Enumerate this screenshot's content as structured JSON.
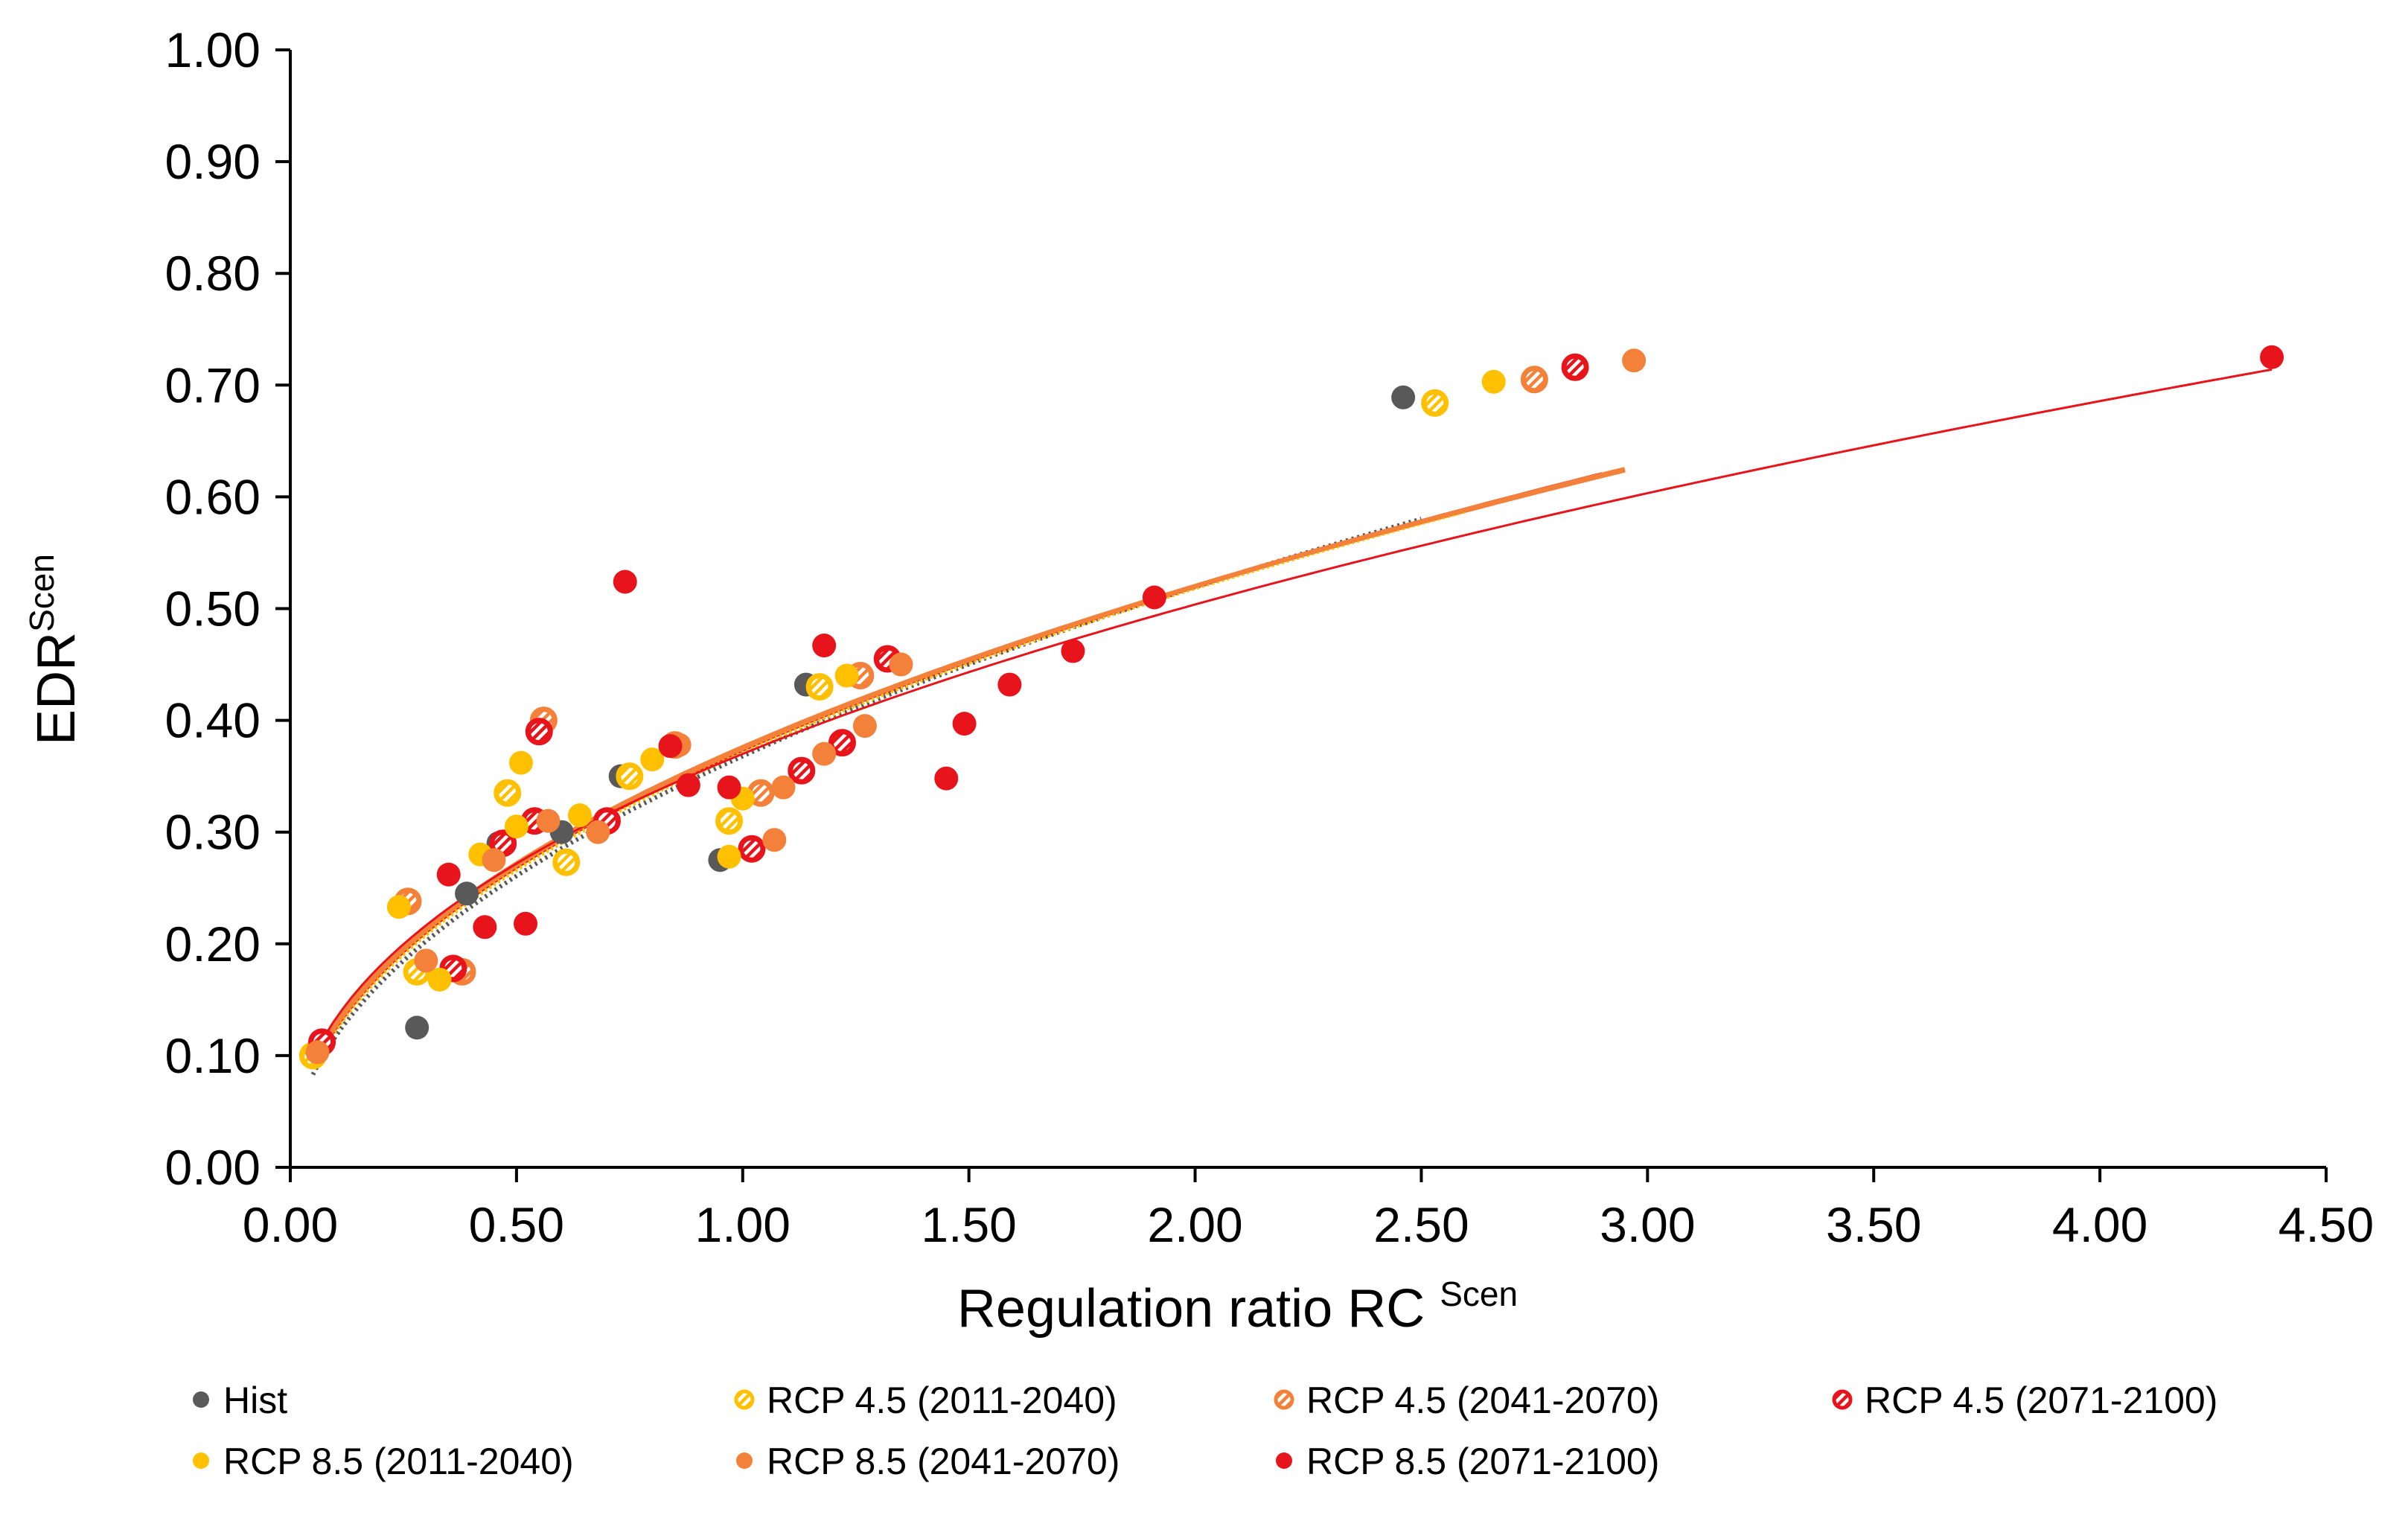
{
  "chart_data": {
    "type": "scatter",
    "title": "",
    "xlabel": "Regulation ratio RC",
    "xlabel_superscript": "Scen",
    "ylabel": "EDR",
    "ylabel_superscript": "Scen",
    "xlim": [
      0,
      4.5
    ],
    "ylim": [
      0,
      1.0
    ],
    "x_ticks": [
      "0.00",
      "0.50",
      "1.00",
      "1.50",
      "2.00",
      "2.50",
      "3.00",
      "3.50",
      "4.00",
      "4.50"
    ],
    "y_ticks": [
      "0.00",
      "0.10",
      "0.20",
      "0.30",
      "0.40",
      "0.50",
      "0.60",
      "0.70",
      "0.80",
      "0.90",
      "1.00"
    ],
    "grid": false,
    "legend_position": "bottom",
    "series": [
      {
        "name": "Hist",
        "color": "#595959",
        "marker": "solid",
        "trend": {
          "a": 0.368,
          "b": 0.497,
          "xmax": 2.5,
          "style": "dotted"
        },
        "points": [
          [
            0.28,
            0.125
          ],
          [
            0.39,
            0.245
          ],
          [
            0.46,
            0.29
          ],
          [
            0.6,
            0.3
          ],
          [
            0.73,
            0.35
          ],
          [
            0.95,
            0.275
          ],
          [
            1.14,
            0.432
          ],
          [
            2.46,
            0.689
          ]
        ]
      },
      {
        "name": "RCP 4.5 (2011-2040)",
        "color": "#FFC000",
        "marker": "hatched",
        "trend": {
          "a": 0.372,
          "b": 0.48,
          "xmax": 2.5,
          "style": "dashed"
        },
        "points": [
          [
            0.05,
            0.1
          ],
          [
            0.28,
            0.175
          ],
          [
            0.48,
            0.335
          ],
          [
            0.61,
            0.273
          ],
          [
            0.75,
            0.35
          ],
          [
            0.97,
            0.31
          ],
          [
            1.17,
            0.43
          ],
          [
            2.53,
            0.684
          ]
        ]
      },
      {
        "name": "RCP 4.5 (2041-2070)",
        "color": "#F4813A",
        "marker": "hatched",
        "trend": {
          "a": 0.376,
          "b": 0.468,
          "xmax": 2.95,
          "style": "solid"
        },
        "points": [
          [
            0.26,
            0.238
          ],
          [
            0.38,
            0.175
          ],
          [
            0.56,
            0.4
          ],
          [
            0.85,
            0.378
          ],
          [
            1.04,
            0.335
          ],
          [
            1.26,
            0.44
          ],
          [
            2.75,
            0.705
          ]
        ]
      },
      {
        "name": "RCP 4.5 (2071-2100)",
        "color": "#E8141B",
        "marker": "hatched",
        "trend": {
          "a": 0.374,
          "b": 0.475,
          "xmax": 2.9,
          "style": "solid"
        },
        "points": [
          [
            0.07,
            0.112
          ],
          [
            0.36,
            0.178
          ],
          [
            0.47,
            0.29
          ],
          [
            0.54,
            0.31
          ],
          [
            0.55,
            0.39
          ],
          [
            0.7,
            0.31
          ],
          [
            1.02,
            0.285
          ],
          [
            1.13,
            0.355
          ],
          [
            1.22,
            0.38
          ],
          [
            1.32,
            0.455
          ],
          [
            2.84,
            0.716
          ]
        ]
      },
      {
        "name": "RCP 8.5 (2011-2040)",
        "color": "#FFC000",
        "marker": "solid",
        "trend": {
          "a": 0.373,
          "b": 0.476,
          "xmax": 2.6,
          "style": "dashed"
        },
        "points": [
          [
            0.24,
            0.233
          ],
          [
            0.33,
            0.168
          ],
          [
            0.42,
            0.28
          ],
          [
            0.5,
            0.305
          ],
          [
            0.51,
            0.362
          ],
          [
            0.64,
            0.315
          ],
          [
            0.8,
            0.365
          ],
          [
            0.97,
            0.278
          ],
          [
            1.0,
            0.33
          ],
          [
            1.23,
            0.44
          ],
          [
            2.66,
            0.703
          ]
        ]
      },
      {
        "name": "RCP 8.5 (2041-2070)",
        "color": "#F4813A",
        "marker": "solid",
        "trend": {
          "a": 0.375,
          "b": 0.472,
          "xmax": 2.95,
          "style": "solid"
        },
        "points": [
          [
            0.06,
            0.103
          ],
          [
            0.3,
            0.185
          ],
          [
            0.45,
            0.275
          ],
          [
            0.57,
            0.31
          ],
          [
            0.68,
            0.3
          ],
          [
            0.86,
            0.378
          ],
          [
            1.07,
            0.293
          ],
          [
            1.09,
            0.34
          ],
          [
            1.18,
            0.37
          ],
          [
            1.27,
            0.395
          ],
          [
            1.35,
            0.45
          ],
          [
            2.97,
            0.722
          ]
        ]
      },
      {
        "name": "RCP 8.5 (2071-2100)",
        "color": "#E8141B",
        "marker": "solid",
        "trend": {
          "a": 0.37,
          "b": 0.445,
          "xmax": 4.38,
          "style": "solid"
        },
        "points": [
          [
            0.35,
            0.262
          ],
          [
            0.43,
            0.215
          ],
          [
            0.52,
            0.218
          ],
          [
            0.74,
            0.524
          ],
          [
            0.84,
            0.377
          ],
          [
            0.88,
            0.342
          ],
          [
            0.97,
            0.34
          ],
          [
            1.18,
            0.467
          ],
          [
            1.45,
            0.348
          ],
          [
            1.49,
            0.397
          ],
          [
            1.59,
            0.432
          ],
          [
            1.73,
            0.462
          ],
          [
            1.91,
            0.51
          ],
          [
            4.38,
            0.725
          ]
        ]
      }
    ]
  }
}
